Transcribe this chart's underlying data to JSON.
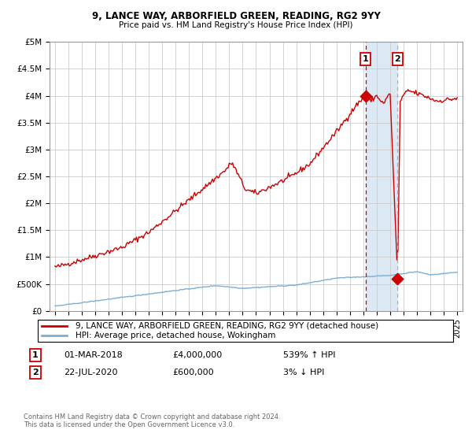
{
  "title1": "9, LANCE WAY, ARBORFIELD GREEN, READING, RG2 9YY",
  "title2": "Price paid vs. HM Land Registry's House Price Index (HPI)",
  "legend_red": "9, LANCE WAY, ARBORFIELD GREEN, READING, RG2 9YY (detached house)",
  "legend_blue": "HPI: Average price, detached house, Wokingham",
  "sale1_date": "01-MAR-2018",
  "sale1_price": "£4,000,000",
  "sale1_hpi": "539% ↑ HPI",
  "sale2_date": "22-JUL-2020",
  "sale2_price": "£600,000",
  "sale2_hpi": "3% ↓ HPI",
  "footer": "Contains HM Land Registry data © Crown copyright and database right 2024.\nThis data is licensed under the Open Government Licence v3.0.",
  "red_color": "#cc0000",
  "blue_color": "#7bafd4",
  "shade_color": "#dce9f5",
  "bg_color": "#ffffff",
  "grid_color": "#cccccc",
  "ylim": [
    0,
    5000000
  ],
  "yticks": [
    0,
    500000,
    1000000,
    1500000,
    2000000,
    2500000,
    3000000,
    3500000,
    4000000,
    4500000,
    5000000
  ],
  "ytick_labels": [
    "£0",
    "£500K",
    "£1M",
    "£1.5M",
    "£2M",
    "£2.5M",
    "£3M",
    "£3.5M",
    "£4M",
    "£4.5M",
    "£5M"
  ],
  "sale1_year": 2018.17,
  "sale2_year": 2020.55,
  "sale1_val": 4000000,
  "sale2_val": 600000,
  "xmin": 1994.6,
  "xmax": 2025.4
}
